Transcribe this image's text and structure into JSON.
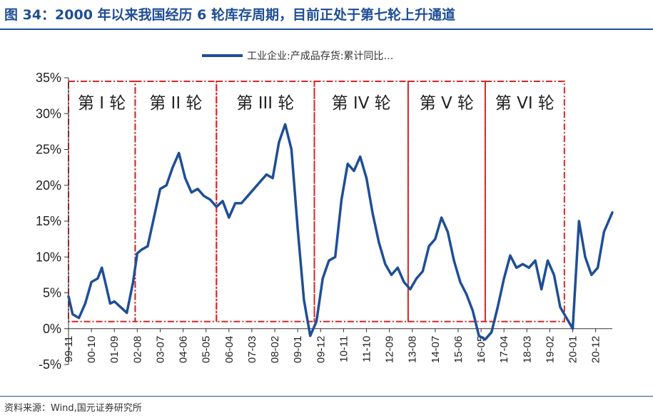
{
  "header": {
    "title": "图 34：2000 年以来我国经历 6 轮库存周期，目前正处于第七轮上升通道"
  },
  "footer": {
    "source": "资料来源：Wind,国元证券研究所"
  },
  "colors": {
    "line": "#1f4e96",
    "cycle_box": "#d62728",
    "title": "#1f4e96"
  },
  "chart_data": {
    "type": "line",
    "title": "",
    "xlabel": "",
    "ylabel": "",
    "ylim": [
      -5,
      35
    ],
    "y_ticks": [
      "-5%",
      "0%",
      "5%",
      "10%",
      "15%",
      "20%",
      "25%",
      "30%",
      "35%"
    ],
    "y_tick_values": [
      -5,
      0,
      5,
      10,
      15,
      20,
      25,
      30,
      35
    ],
    "x_ticks": [
      "99-11",
      "00-10",
      "01-09",
      "02-08",
      "03-07",
      "04-06",
      "05-05",
      "06-04",
      "07-03",
      "08-02",
      "09-01",
      "09-12",
      "10-11",
      "11-10",
      "12-09",
      "13-08",
      "14-07",
      "15-06",
      "16-05",
      "17-04",
      "18-03",
      "19-02",
      "20-01",
      "20-12"
    ],
    "x_tick_months": [
      0,
      11,
      22,
      33,
      44,
      55,
      66,
      77,
      88,
      99,
      110,
      121,
      132,
      143,
      154,
      165,
      176,
      187,
      198,
      209,
      220,
      231,
      242,
      253
    ],
    "x_start": "1999-11",
    "x_end": "2021-08",
    "legend": {
      "position": "top-center",
      "entries": [
        "工业企业:产成品存货:累计同比…"
      ]
    },
    "grid": false,
    "series": [
      {
        "name": "工业企业:产成品存货:累计同比…",
        "x": [
          "1999-11",
          "2000-01",
          "2000-04",
          "2000-07",
          "2000-10",
          "2001-01",
          "2001-03",
          "2001-05",
          "2001-07",
          "2001-09",
          "2001-12",
          "2002-03",
          "2002-06",
          "2002-08",
          "2002-10",
          "2003-01",
          "2003-04",
          "2003-07",
          "2003-10",
          "2004-01",
          "2004-04",
          "2004-07",
          "2004-10",
          "2005-01",
          "2005-04",
          "2005-07",
          "2005-10",
          "2006-01",
          "2006-04",
          "2006-07",
          "2006-10",
          "2007-01",
          "2007-04",
          "2007-07",
          "2007-10",
          "2008-01",
          "2008-04",
          "2008-07",
          "2008-10",
          "2009-01",
          "2009-04",
          "2009-07",
          "2009-10",
          "2010-01",
          "2010-04",
          "2010-07",
          "2010-10",
          "2011-01",
          "2011-04",
          "2011-07",
          "2011-10",
          "2012-01",
          "2012-04",
          "2012-07",
          "2012-10",
          "2013-01",
          "2013-04",
          "2013-07",
          "2013-10",
          "2014-01",
          "2014-04",
          "2014-07",
          "2014-10",
          "2015-01",
          "2015-04",
          "2015-07",
          "2015-10",
          "2016-01",
          "2016-04",
          "2016-07",
          "2016-10",
          "2017-01",
          "2017-04",
          "2017-07",
          "2017-10",
          "2018-01",
          "2018-04",
          "2018-07",
          "2018-10",
          "2019-01",
          "2019-04",
          "2019-07",
          "2019-10",
          "2020-01",
          "2020-04",
          "2020-07",
          "2020-10",
          "2021-01",
          "2021-04",
          "2021-08"
        ],
        "values": [
          4.5,
          2.0,
          1.5,
          3.5,
          6.5,
          7.0,
          8.5,
          6.0,
          3.5,
          3.8,
          3.0,
          2.2,
          6.5,
          10.5,
          11.0,
          11.5,
          15.5,
          19.5,
          20.0,
          22.5,
          24.5,
          21.0,
          19.0,
          19.5,
          18.5,
          18.0,
          17.0,
          17.8,
          15.5,
          17.5,
          17.5,
          18.5,
          19.5,
          20.5,
          21.5,
          21.0,
          26.0,
          28.5,
          25.0,
          14.0,
          4.0,
          -1.0,
          1.0,
          7.0,
          9.5,
          10.0,
          18.0,
          23.0,
          22.0,
          24.0,
          21.0,
          16.0,
          12.0,
          9.0,
          7.5,
          8.5,
          6.5,
          5.5,
          7.0,
          8.0,
          11.5,
          12.5,
          15.5,
          13.5,
          9.5,
          6.5,
          4.8,
          2.5,
          -1.0,
          -1.5,
          -0.5,
          3.0,
          7.0,
          10.2,
          8.5,
          9.0,
          8.5,
          9.5,
          5.5,
          9.5,
          7.5,
          3.0,
          1.5,
          0.0,
          15.0,
          10.0,
          7.5,
          8.5,
          13.5,
          16.2
        ]
      }
    ],
    "cycles": [
      {
        "label": "第 I 轮",
        "start": "1999-11",
        "end": "2002-07"
      },
      {
        "label": "第 II 轮",
        "start": "2002-07",
        "end": "2005-10"
      },
      {
        "label": "第 III 轮",
        "start": "2005-10",
        "end": "2009-09"
      },
      {
        "label": "第 IV 轮",
        "start": "2009-09",
        "end": "2013-06"
      },
      {
        "label": "第 V 轮",
        "start": "2013-06",
        "end": "2016-07"
      },
      {
        "label": "第 VI 轮",
        "start": "2016-07",
        "end": "2019-09"
      }
    ],
    "cycle_box_range": [
      1,
      34.5
    ]
  }
}
